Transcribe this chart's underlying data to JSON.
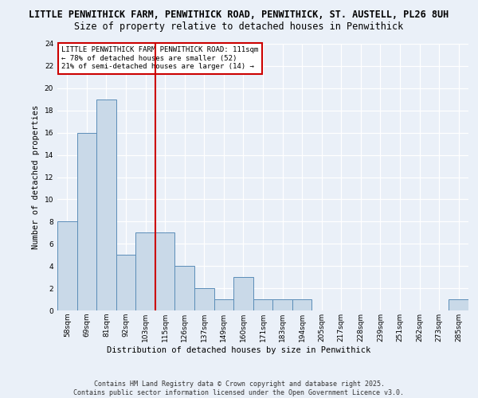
{
  "title_line1": "LITTLE PENWITHICK FARM, PENWITHICK ROAD, PENWITHICK, ST. AUSTELL, PL26 8UH",
  "title_line2": "Size of property relative to detached houses in Penwithick",
  "xlabel": "Distribution of detached houses by size in Penwithick",
  "ylabel": "Number of detached properties",
  "categories": [
    "58sqm",
    "69sqm",
    "81sqm",
    "92sqm",
    "103sqm",
    "115sqm",
    "126sqm",
    "137sqm",
    "149sqm",
    "160sqm",
    "171sqm",
    "183sqm",
    "194sqm",
    "205sqm",
    "217sqm",
    "228sqm",
    "239sqm",
    "251sqm",
    "262sqm",
    "273sqm",
    "285sqm"
  ],
  "values": [
    8,
    16,
    19,
    5,
    7,
    7,
    4,
    2,
    1,
    3,
    1,
    1,
    1,
    0,
    0,
    0,
    0,
    0,
    0,
    0,
    1
  ],
  "bar_color": "#c9d9e8",
  "bar_edge_color": "#5b8db8",
  "vline_x_index": 5,
  "vline_color": "#cc0000",
  "annotation_text": "LITTLE PENWITHICK FARM PENWITHICK ROAD: 111sqm\n← 78% of detached houses are smaller (52)\n21% of semi-detached houses are larger (14) →",
  "annotation_box_color": "#ffffff",
  "annotation_box_edge": "#cc0000",
  "ylim": [
    0,
    24
  ],
  "yticks": [
    0,
    2,
    4,
    6,
    8,
    10,
    12,
    14,
    16,
    18,
    20,
    22,
    24
  ],
  "footer_text": "Contains HM Land Registry data © Crown copyright and database right 2025.\nContains public sector information licensed under the Open Government Licence v3.0.",
  "bg_color": "#eaf0f8",
  "plot_bg_color": "#eaf0f8",
  "title_fontsize": 8.5,
  "subtitle_fontsize": 8.5,
  "axis_label_fontsize": 7.5,
  "tick_fontsize": 6.5,
  "annotation_fontsize": 6.5,
  "footer_fontsize": 6.0
}
